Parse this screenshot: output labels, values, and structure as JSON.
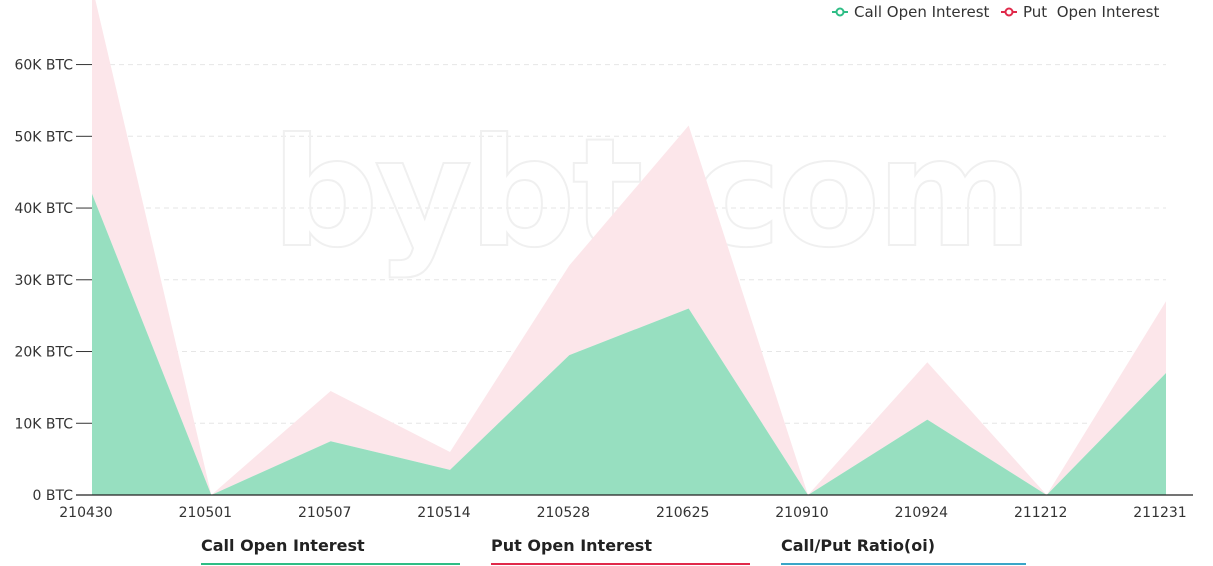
{
  "chart_data": {
    "type": "area",
    "stacked": true,
    "categories": [
      "210430",
      "210501",
      "210507",
      "210514",
      "210528",
      "210625",
      "210910",
      "210924",
      "211212",
      "211231"
    ],
    "series": [
      {
        "name": "Call Open Interest",
        "values": [
          42000,
          0,
          7500,
          3500,
          19500,
          26000,
          0,
          10500,
          0,
          17000
        ],
        "color": "#97dfc0",
        "legend_color": "#2ebd85"
      },
      {
        "name": "Put  Open Interest",
        "values": [
          29000,
          0,
          7000,
          2500,
          12500,
          25500,
          0,
          8000,
          0,
          10000
        ],
        "color": "#fce6ea",
        "legend_color": "#e0294a"
      }
    ],
    "y_ticks": [
      {
        "value": 0,
        "label": "0 BTC"
      },
      {
        "value": 10000,
        "label": "10K BTC"
      },
      {
        "value": 20000,
        "label": "20K BTC"
      },
      {
        "value": 30000,
        "label": "30K BTC"
      },
      {
        "value": 40000,
        "label": "40K BTC"
      },
      {
        "value": 50000,
        "label": "50K BTC"
      },
      {
        "value": 60000,
        "label": "60K BTC"
      }
    ],
    "ylim": [
      0,
      69000
    ],
    "grid": true,
    "legend_position": "top-right",
    "watermark": "bybt.com"
  },
  "tabs": [
    {
      "label": "Call Open Interest",
      "color": "#2ebd85"
    },
    {
      "label": "Put Open Interest",
      "color": "#e0294a"
    },
    {
      "label": "Call/Put Ratio(oi)",
      "color": "#3aa6c8"
    }
  ]
}
